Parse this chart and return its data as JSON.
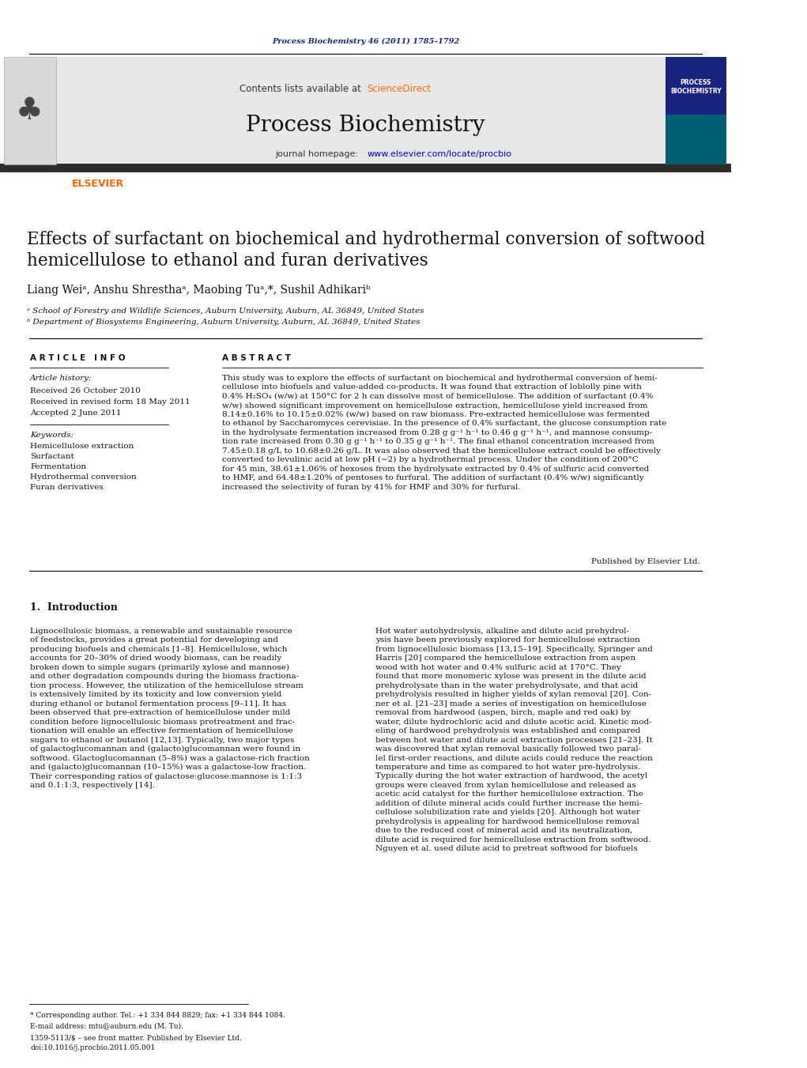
{
  "page_width": 10.21,
  "page_height": 13.51,
  "bg_color": "#ffffff",
  "journal_ref": "Process Biochemistry 46 (2011) 1785–1792",
  "journal_ref_color": "#1a237e",
  "header_bg": "#e8e8e8",
  "header_title": "Process Biochemistry",
  "header_contents": "Contents lists available at ScienceDirect",
  "header_sciencedirect_color": "#ff6600",
  "header_url": "journal homepage: www.elsevier.com/locate/procbio",
  "header_url_color": "#0000cc",
  "dark_bar_color": "#2d2d2d",
  "elsevier_color": "#ff6600",
  "article_title": "Effects of surfactant on biochemical and hydrothermal conversion of softwood\nhemicellulose to ethanol and furan derivatives",
  "authors": "Liang Weiᵃ, Anshu Shresthaᵃ, Maobing Tuᵃ,*, Sushil Adhikariᵇ",
  "affil_a": "ᵃ School of Forestry and Wildlife Sciences, Auburn University, Auburn, AL 36849, United States",
  "affil_b": "ᵇ Department of Biosystems Engineering, Auburn University, Auburn, AL 36849, United States",
  "article_info_header": "A R T I C L E   I N F O",
  "abstract_header": "A B S T R A C T",
  "article_history_header": "Article history:",
  "received1": "Received 26 October 2010",
  "received2": "Received in revised form 18 May 2011",
  "accepted": "Accepted 2 June 2011",
  "keywords_header": "Keywords:",
  "keywords": [
    "Hemicellulose extraction",
    "Surfactant",
    "Fermentation",
    "Hydrothermal conversion",
    "Furan derivatives"
  ],
  "abstract_text": "This study was to explore the effects of surfactant on biochemical and hydrothermal conversion of hemi-\ncellulose into biofuels and value-added co-products. It was found that extraction of loblolly pine with\n0.4% H₂SO₄ (w/w) at 150°C for 2 h can dissolve most of hemicellulose. The addition of surfactant (0.4%\nw/w) showed significant improvement on hemicellulose extraction, hemicellulose yield increased from\n8.14±0.16% to 10.15±0.02% (w/w) based on raw biomass. Pre-extracted hemicellulose was fermented\nto ethanol by Saccharomyces cerevisiae. In the presence of 0.4% surfactant, the glucose consumption rate\nin the hydrolysate fermentation increased from 0.28 g g⁻¹ h⁻¹ to 0.46 g g⁻¹ h⁻¹, and mannose consump-\ntion rate increased from 0.30 g g⁻¹ h⁻¹ to 0.35 g g⁻¹ h⁻¹. The final ethanol concentration increased from\n7.45±0.18 g/L to 10.68±0.26 g/L. It was also observed that the hemicellulose extract could be effectively\nconverted to levulinic acid at low pH (∼2) by a hydrothermal process. Under the condition of 200°C\nfor 45 min, 38.61±1.06% of hexoses from the hydrolysate extracted by 0.4% of sulfuric acid converted\nto HMF, and 64.48±1.20% of pentoses to furfural. The addition of surfactant (0.4% w/w) significantly\nincreased the selectivity of furan by 41% for HMF and 30% for furfural.",
  "published_by": "Published by Elsevier Ltd.",
  "intro_header": "1.  Introduction",
  "intro_left": "Lignocellulosic biomass, a renewable and sustainable resource\nof feedstocks, provides a great potential for developing and\nproducing biofuels and chemicals [1–8]. Hemicellulose, which\naccounts for 20–30% of dried woody biomass, can be readily\nbroken down to simple sugars (primarily xylose and mannose)\nand other degradation compounds during the biomass fractiona-\ntion process. However, the utilization of the hemicellulose stream\nis extensively limited by its toxicity and low conversion yield\nduring ethanol or butanol fermentation process [9–11]. It has\nbeen observed that pre-extraction of hemicellulose under mild\ncondition before lignocellulosic biomass pretreatment and frac-\ntionation will enable an effective fermentation of hemicellulose\nsugars to ethanol or butanol [12,13]. Typically, two major types\nof galactoglucomannan and (galacto)glucomannan were found in\nsoftwood. Glactoglucomannan (5–8%) was a galactose-rich fraction\nand (galacto)glucomannan (10–15%) was a galactose-low fraction.\nTheir corresponding ratios of galactose:glucose:mannose is 1:1:3\nand 0.1:1:3, respectively [14].",
  "intro_right": "Hot water autohydrolysis, alkaline and dilute acid prehydrol-\nysis have been previously explored for hemicellulose extraction\nfrom lignocellulosic biomass [13,15–19]. Specifically, Springer and\nHarris [20] compared the hemicellulose extraction from aspen\nwood with hot water and 0.4% sulfuric acid at 170°C. They\nfound that more monomeric xylose was present in the dilute acid\nprehydrolysate than in the water prehydrolysate, and that acid\nprehydrolysis resulted in higher yields of xylan removal [20]. Con-\nner et al. [21–23] made a series of investigation on hemicellulose\nremoval from hardwood (aspen, birch, maple and red oak) by\nwater, dilute hydrochloric acid and dilute acetic acid. Kinetic mod-\neling of hardwood prehydrolysis was established and compared\nbetween hot water and dilute acid extraction processes [21–23]. It\nwas discovered that xylan removal basically followed two paral-\nlel first-order reactions, and dilute acids could reduce the reaction\ntemperature and time as compared to hot water pre-hydrolysis.\nTypically during the hot water extraction of hardwood, the acetyl\ngroups were cleaved from xylan hemicellulose and released as\nacetic acid catalyst for the further hemicellulose extraction. The\naddition of dilute mineral acids could further increase the hemi-\ncellulose solubilization rate and yields [20]. Although hot water\nprehydrolysis is appealing for hardwood hemicellulose removal\ndue to the reduced cost of mineral acid and its neutralization,\ndilute acid is required for hemicellulose extraction from softwood.\nNguyen et al. used dilute acid to pretreat softwood for biofuels",
  "footnote1": "* Corresponding author. Tel.: +1 334 844 8829; fax: +1 334 844 1084.",
  "footnote2": "E-mail address: mtu@auburn.edu (M. Tu).",
  "footnote3": "1359-5113/$ – see front matter. Published by Elsevier Ltd.",
  "footnote4": "doi:10.1016/j.procbio.2011.05.001"
}
